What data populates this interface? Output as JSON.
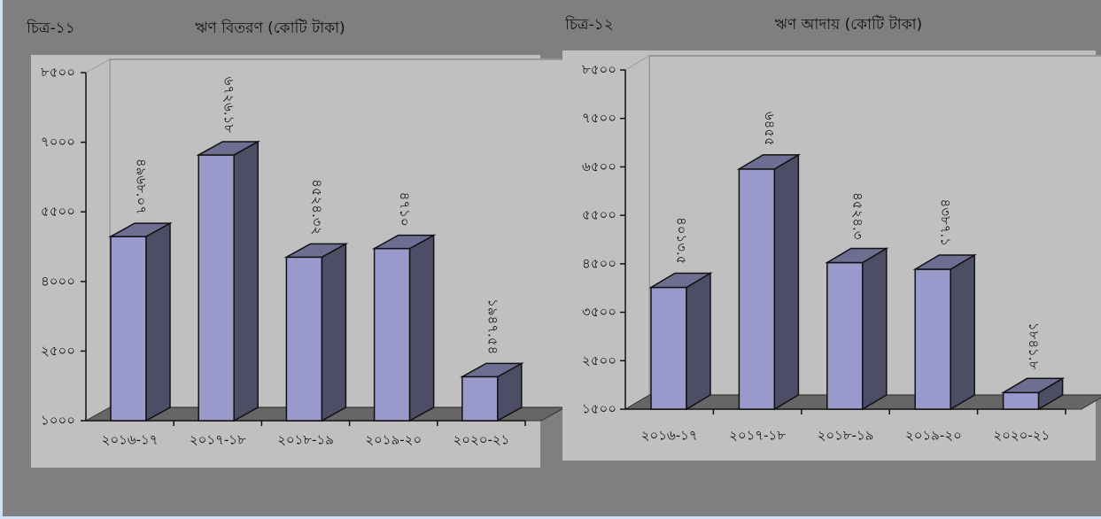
{
  "chart_data": [
    {
      "type": "bar3d",
      "label": "চিত্র-১১",
      "title": "ঋণ বিতরণ (কোটি টাকা)",
      "categories": [
        "২০১৬-১৭",
        "২০১৭-১৮",
        "২০১৮-১৯",
        "২০১৯-২০",
        "২০২০-২১"
      ],
      "values": [
        4968.07,
        6726.18,
        4524.32,
        4710,
        1947.54
      ],
      "value_labels": [
        "৪৯৬৮.০৭",
        "৬৭২৬.১৮",
        "৪৫২৪.৩২",
        "৪৭১০",
        "১৯৪৭.৫৪"
      ],
      "color": "#9999cc",
      "ylim": [
        1000,
        8500
      ],
      "yticks": [
        {
          "value": 1000,
          "label": "১০০০"
        },
        {
          "value": 2500,
          "label": "২৫০০"
        },
        {
          "value": 4000,
          "label": "৪০০০"
        },
        {
          "value": 5500,
          "label": "৫৫০০"
        },
        {
          "value": 7000,
          "label": "৭০০০"
        },
        {
          "value": 8500,
          "label": "৮৫০০"
        }
      ]
    },
    {
      "type": "bar3d",
      "label": "চিত্র-১২",
      "title": "ঋণ আদায় (কোটি টাকা)",
      "categories": [
        "২০১৬-১৭",
        "২০১৭-১৮",
        "২০১৮-১৯",
        "২০১৯-২০",
        "২০২০-২১"
      ],
      "values": [
        4013.5,
        6455,
        4524.3,
        4387.1,
        1841.8
      ],
      "value_labels": [
        "৪০১৩.৫",
        "৬৪৫৫",
        "৪৫২৪.৩",
        "৪৩৮৭.১",
        "১৮৪১.৮"
      ],
      "color": "#9999cc",
      "ylim": [
        1500,
        8500
      ],
      "yticks": [
        {
          "value": 1500,
          "label": "১৫০০"
        },
        {
          "value": 2500,
          "label": "২৫০০"
        },
        {
          "value": 3500,
          "label": "৩৫০০"
        },
        {
          "value": 4500,
          "label": "৪৫০০"
        },
        {
          "value": 5500,
          "label": "৫৫০০"
        },
        {
          "value": 6500,
          "label": "৬৫০০"
        },
        {
          "value": 7500,
          "label": "৭৫০০"
        },
        {
          "value": 8500,
          "label": "৮৫০০"
        }
      ]
    }
  ]
}
